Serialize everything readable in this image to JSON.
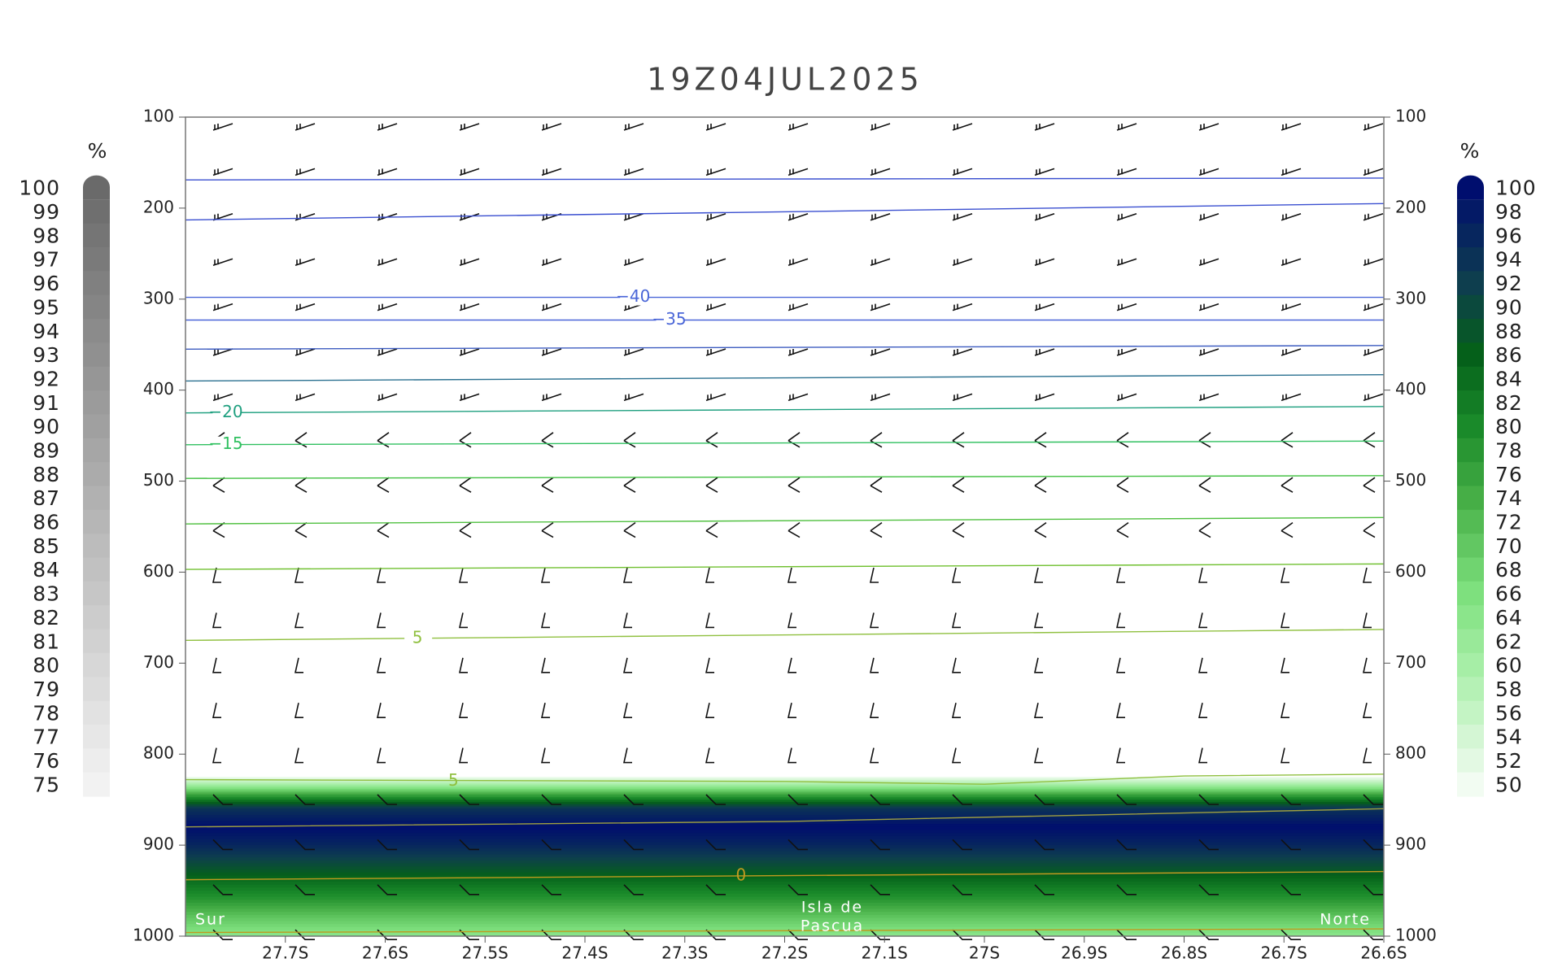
{
  "chart_data": {
    "type": "cross-section",
    "title": "19Z04JUL2025",
    "xlim": [
      -27.8,
      -26.6
    ],
    "xticks": [
      {
        "value": -27.7,
        "label": "27.7S"
      },
      {
        "value": -27.6,
        "label": "27.6S"
      },
      {
        "value": -27.5,
        "label": "27.5S"
      },
      {
        "value": -27.4,
        "label": "27.4S"
      },
      {
        "value": -27.3,
        "label": "27.3S"
      },
      {
        "value": -27.2,
        "label": "27.2S"
      },
      {
        "value": -27.1,
        "label": "27.1S"
      },
      {
        "value": -27.0,
        "label": "27S"
      },
      {
        "value": -26.9,
        "label": "26.9S"
      },
      {
        "value": -26.8,
        "label": "26.8S"
      },
      {
        "value": -26.7,
        "label": "26.7S"
      },
      {
        "value": -26.6,
        "label": "26.6S"
      }
    ],
    "ylim": [
      100,
      1000
    ],
    "yticks": [
      100,
      200,
      300,
      400,
      500,
      600,
      700,
      800,
      900,
      1000
    ],
    "y2lim": [
      100,
      1000
    ],
    "y2ticks": [
      100,
      200,
      300,
      400,
      500,
      600,
      700,
      800,
      900,
      1000
    ],
    "places": {
      "south": "Sur",
      "center_1": "Isla de",
      "center_2": "Pascua",
      "north": "Norte"
    },
    "humidity": {
      "levels": [
        825,
        835,
        845,
        860,
        880,
        900,
        920,
        940,
        960,
        980,
        1000
      ],
      "values": [
        50,
        62,
        76,
        94,
        100,
        96,
        90,
        84,
        78,
        70,
        64
      ]
    },
    "contours": [
      {
        "color": "#3a4fd0",
        "lat": [
          -27.8,
          -26.6
        ],
        "values": [
          169,
          167
        ]
      },
      {
        "color": "#3a4fd0",
        "lat": [
          -27.8,
          -26.6
        ],
        "values": [
          213,
          195
        ]
      },
      {
        "color": "#4a66d8",
        "lat": [
          -27.8,
          -26.6
        ],
        "values": [
          298,
          298
        ],
        "label": "−40"
      },
      {
        "color": "#4a66d8",
        "lat": [
          -27.8,
          -26.6
        ],
        "values": [
          323,
          323
        ],
        "label": "−35"
      },
      {
        "color": "#3d5cc0",
        "lat": [
          -27.8,
          -26.6
        ],
        "values": [
          355,
          351
        ]
      },
      {
        "color": "#2a7090",
        "lat": [
          -27.8,
          -26.6
        ],
        "values": [
          390,
          383
        ]
      },
      {
        "color": "#20a080",
        "lat": [
          -27.8,
          -26.6
        ],
        "values": [
          425,
          418
        ],
        "label": "−20"
      },
      {
        "color": "#30c060",
        "lat": [
          -27.8,
          -26.6
        ],
        "values": [
          460,
          456
        ],
        "label": "−15"
      },
      {
        "color": "#40c040",
        "lat": [
          -27.8,
          -26.6
        ],
        "values": [
          497,
          494
        ]
      },
      {
        "color": "#50c040",
        "lat": [
          -27.8,
          -26.6
        ],
        "values": [
          547,
          540
        ]
      },
      {
        "color": "#70c030",
        "lat": [
          -27.8,
          -26.6
        ],
        "values": [
          597,
          591
        ]
      },
      {
        "color": "#90c040",
        "lat": [
          -27.8,
          -26.6
        ],
        "values": [
          675,
          663
        ],
        "label": "5"
      },
      {
        "color": "#90c040",
        "lat": [
          -27.8,
          -27.2,
          -27.0,
          -26.8,
          -26.6
        ],
        "values": [
          828,
          830,
          833,
          824,
          822
        ],
        "label": "5"
      },
      {
        "color": "#a0a040",
        "lat": [
          -27.8,
          -27.2,
          -26.6
        ],
        "values": [
          880,
          874,
          860
        ]
      },
      {
        "color": "#c09a20",
        "lat": [
          -27.8,
          -26.6
        ],
        "values": [
          938,
          929
        ],
        "label": "0"
      },
      {
        "color": "#c09a20",
        "lat": [
          -27.8,
          -26.6
        ],
        "values": [
          996,
          992
        ]
      }
    ],
    "colorbar_left": {
      "unit": "%",
      "ticks": [
        100,
        99,
        98,
        97,
        96,
        95,
        94,
        93,
        92,
        91,
        90,
        89,
        88,
        87,
        86,
        85,
        84,
        83,
        82,
        81,
        80,
        79,
        78,
        77,
        76,
        75
      ],
      "colormap": {
        "values": [
          75,
          100
        ],
        "colors": [
          "#f2f2f2",
          "#6a6a6a"
        ]
      }
    },
    "colorbar_right": {
      "unit": "%",
      "ticks": [
        100,
        98,
        96,
        94,
        92,
        90,
        88,
        86,
        84,
        82,
        80,
        78,
        76,
        74,
        72,
        70,
        68,
        66,
        64,
        62,
        60,
        58,
        56,
        54,
        52,
        50
      ],
      "colormap": {
        "values": [
          50,
          60,
          66,
          74,
          80,
          86,
          92,
          100
        ],
        "colors": [
          "#f2fcf2",
          "#a6eea6",
          "#7ee07e",
          "#46ae46",
          "#1a8a2a",
          "#05601a",
          "#0e3e4e",
          "#000e6e"
        ]
      }
    }
  }
}
